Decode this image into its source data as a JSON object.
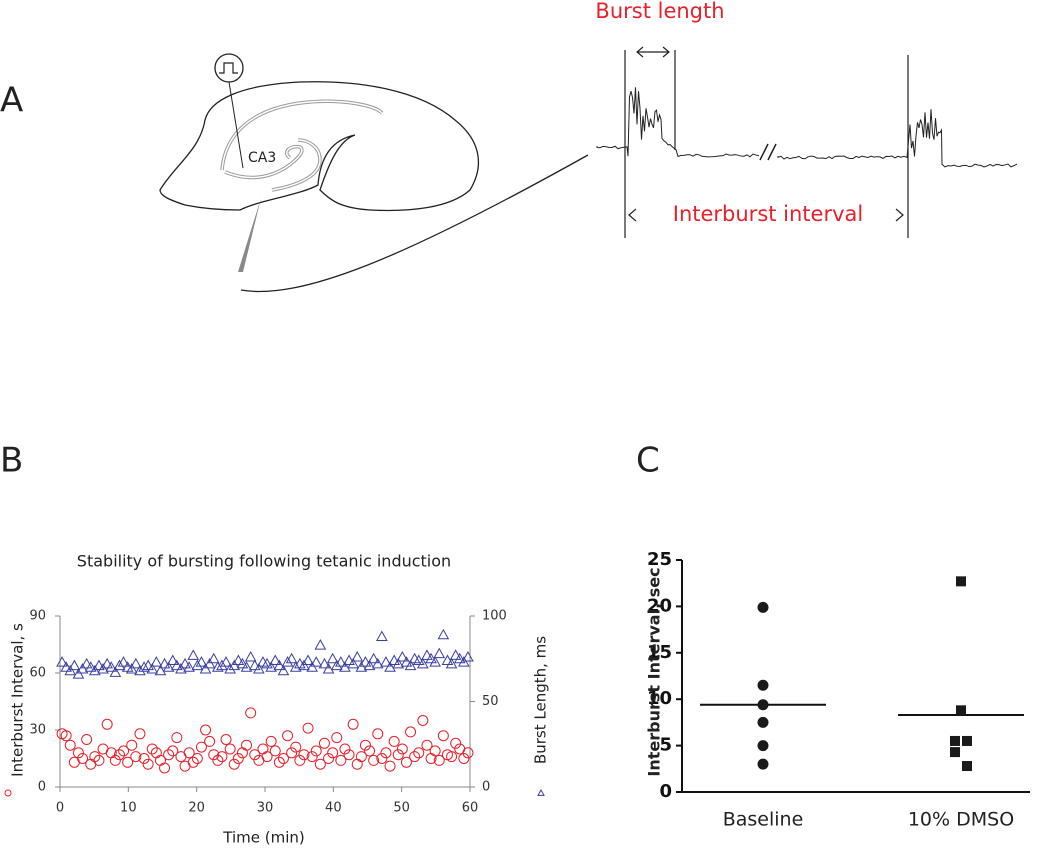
{
  "figure": {
    "panel_labels": [
      "A",
      "B",
      "C"
    ],
    "diagram": {
      "region": "CA3",
      "burst_length": "Burst length",
      "interburst_interval": "Interburst interval"
    }
  },
  "chart_data": [
    {
      "type": "scatter",
      "title": "Stability of bursting following tetanic induction",
      "x_label": "Time (min)",
      "y_label": "Interburst Interval, s",
      "y2_label": "Burst Length, ms",
      "xlim": [
        0,
        60
      ],
      "xticks": [
        0,
        10,
        20,
        30,
        40,
        50,
        60
      ],
      "ylim": [
        0,
        90
      ],
      "yticks": [
        0,
        30,
        60,
        90
      ],
      "y2lim": [
        0,
        100
      ],
      "y2ticks": [
        0,
        50,
        100
      ],
      "x": [
        0.3,
        0.9,
        1.5,
        2.1,
        2.7,
        3.3,
        3.9,
        4.5,
        5.1,
        5.7,
        6.3,
        6.9,
        7.5,
        8.1,
        8.7,
        9.3,
        9.9,
        10.5,
        11.1,
        11.7,
        12.3,
        12.9,
        13.5,
        14.1,
        14.7,
        15.3,
        15.9,
        16.5,
        17.1,
        17.7,
        18.3,
        18.9,
        19.5,
        20.1,
        20.7,
        21.3,
        21.9,
        22.5,
        23.1,
        23.7,
        24.3,
        24.9,
        25.5,
        26.1,
        26.7,
        27.3,
        27.9,
        28.5,
        29.1,
        29.7,
        30.3,
        30.9,
        31.5,
        32.1,
        32.7,
        33.3,
        33.9,
        34.5,
        35.1,
        35.7,
        36.3,
        36.9,
        37.5,
        38.1,
        38.7,
        39.3,
        39.9,
        40.5,
        41.1,
        41.7,
        42.3,
        42.9,
        43.5,
        44.1,
        44.7,
        45.3,
        45.9,
        46.5,
        47.1,
        47.7,
        48.3,
        48.9,
        49.5,
        50.1,
        50.7,
        51.3,
        51.9,
        52.5,
        53.1,
        53.7,
        54.3,
        54.9,
        55.5,
        56.1,
        56.7,
        57.3,
        57.9,
        58.5,
        59.1,
        59.7
      ],
      "series": [
        {
          "color": "#e8202a",
          "marker": "circle",
          "axis": "y",
          "values": [
            28,
            27,
            22,
            13,
            18,
            15,
            25,
            12,
            16,
            14,
            20,
            33,
            18,
            14,
            17,
            19,
            13,
            22,
            16,
            28,
            15,
            12,
            20,
            18,
            14,
            10,
            17,
            19,
            26,
            16,
            11,
            18,
            13,
            15,
            21,
            30,
            24,
            17,
            14,
            16,
            25,
            20,
            12,
            15,
            18,
            22,
            39,
            17,
            14,
            20,
            16,
            24,
            19,
            13,
            15,
            27,
            18,
            21,
            14,
            17,
            31,
            16,
            19,
            12,
            23,
            15,
            18,
            26,
            14,
            20,
            17,
            33,
            12,
            16,
            22,
            19,
            14,
            28,
            15,
            18,
            11,
            24,
            17,
            20,
            13,
            29,
            16,
            18,
            35,
            22,
            15,
            19,
            14,
            27,
            17,
            16,
            23,
            20,
            15,
            18
          ]
        },
        {
          "color": "#3a3fa0",
          "marker": "triangle",
          "axis": "y2",
          "values": [
            73,
            70,
            68,
            71,
            66,
            69,
            72,
            70,
            68,
            71,
            69,
            72,
            70,
            67,
            71,
            73,
            70,
            69,
            72,
            68,
            70,
            71,
            69,
            73,
            68,
            72,
            70,
            74,
            71,
            69,
            72,
            70,
            77,
            71,
            73,
            69,
            72,
            75,
            70,
            71,
            73,
            69,
            71,
            74,
            72,
            70,
            76,
            71,
            69,
            73,
            72,
            70,
            74,
            71,
            68,
            73,
            75,
            70,
            72,
            71,
            74,
            70,
            73,
            83,
            72,
            69,
            75,
            71,
            73,
            70,
            74,
            72,
            76,
            70,
            73,
            71,
            75,
            72,
            88,
            73,
            70,
            74,
            72,
            76,
            73,
            71,
            75,
            74,
            72,
            77,
            75,
            73,
            78,
            89,
            74,
            72,
            77,
            75,
            73,
            76
          ]
        }
      ]
    },
    {
      "type": "dot",
      "y_label": "Interburst Interval, sec",
      "categories": [
        "Baseline",
        "10% DMSO"
      ],
      "ylim": [
        0,
        25
      ],
      "yticks": [
        0,
        5,
        10,
        15,
        20,
        25
      ],
      "color": "#1a1a1a",
      "groups": [
        {
          "marker": "circle",
          "values": [
            19.9,
            11.5,
            9.4,
            7.5,
            5.0,
            3.0
          ],
          "mean": 9.4
        },
        {
          "marker": "square",
          "values": [
            22.7,
            8.8,
            5.5,
            5.5,
            4.3,
            2.8
          ],
          "mean": 8.3
        }
      ]
    }
  ]
}
